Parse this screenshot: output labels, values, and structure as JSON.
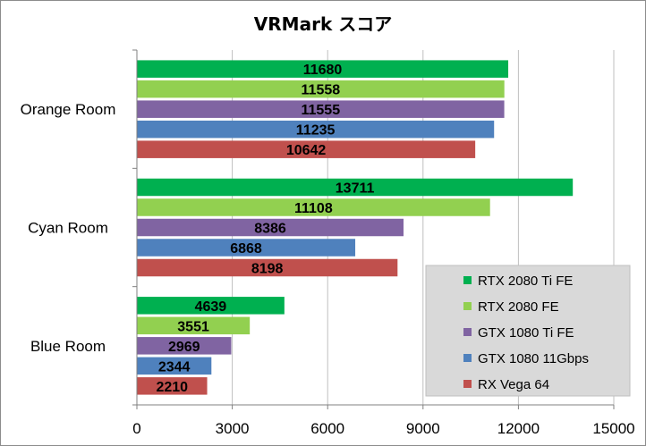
{
  "chart_data": {
    "type": "bar",
    "orientation": "horizontal",
    "title": "VRMark スコア",
    "categories": [
      "Orange Room",
      "Cyan Room",
      "Blue Room"
    ],
    "series": [
      {
        "name": "RTX 2080 Ti FE",
        "color": "#00b050",
        "values": [
          11680,
          13711,
          4639
        ]
      },
      {
        "name": "RTX 2080 FE",
        "color": "#92d050",
        "values": [
          11558,
          11108,
          3551
        ]
      },
      {
        "name": "GTX 1080 Ti FE",
        "color": "#8064a2",
        "values": [
          11555,
          8386,
          2969
        ]
      },
      {
        "name": "GTX 1080 11Gbps",
        "color": "#4f81bd",
        "values": [
          11235,
          6868,
          2344
        ]
      },
      {
        "name": "RX Vega 64",
        "color": "#c0504d",
        "values": [
          10642,
          8198,
          2210
        ]
      }
    ],
    "xlim": [
      0,
      15000
    ],
    "xticks": [
      "0",
      "3000",
      "6000",
      "9000",
      "12000",
      "15000"
    ],
    "grid": true,
    "legend_position": "bottom-right",
    "data_labels": true
  }
}
